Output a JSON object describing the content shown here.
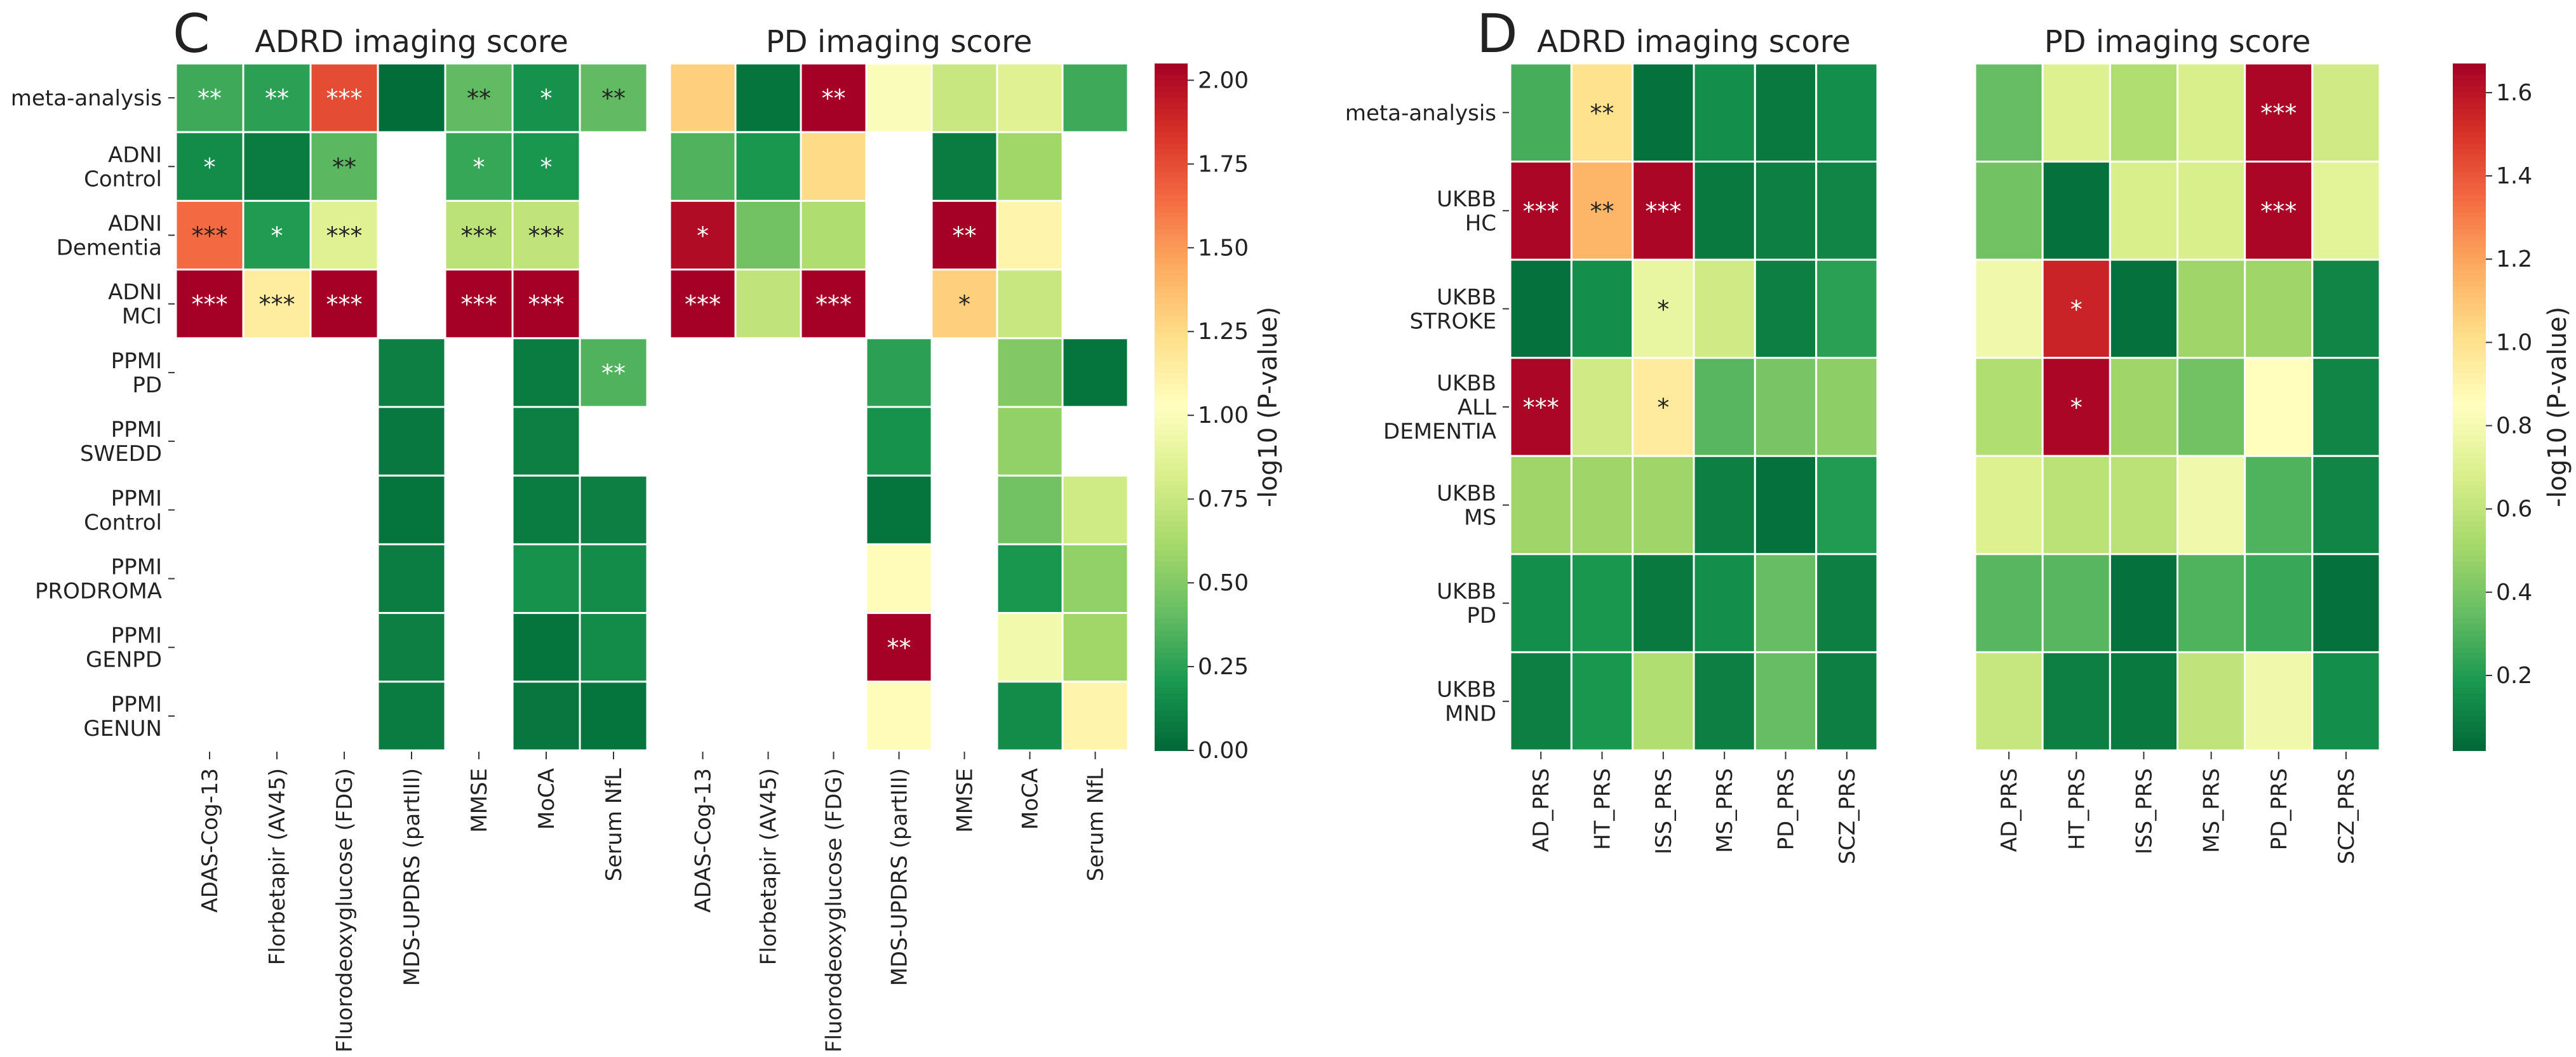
{
  "panel_letters": {
    "C": "C",
    "D": "D"
  },
  "colorbar_label": "-log10 (P-value)",
  "chart_data": [
    {
      "type": "heatmap",
      "panel": "C",
      "title": "ADRD imaging score",
      "rows": [
        "meta-analysis",
        "ADNI\nControl",
        "ADNI\nDementia",
        "ADNI\nMCI",
        "PPMI\nPD",
        "PPMI\nSWEDD",
        "PPMI\nControl",
        "PPMI\nPRODROMA",
        "PPMI\nGENPD",
        "PPMI\nGENUN"
      ],
      "columns": [
        "ADAS-Cog-13",
        "Florbetapir (AV45)",
        "Fluorodeoxyglucose (FDG)",
        "MDS-UPDRS (partIII)",
        "MMSE",
        "MoCA",
        "Serum NfL"
      ],
      "values": [
        [
          0.3,
          0.25,
          1.75,
          0.02,
          0.4,
          0.18,
          0.4
        ],
        [
          0.15,
          0.08,
          0.38,
          null,
          0.28,
          0.2,
          null
        ],
        [
          1.65,
          0.22,
          0.85,
          null,
          0.7,
          0.72,
          null
        ],
        [
          2.05,
          1.15,
          2.05,
          null,
          2.05,
          2.05,
          null
        ],
        [
          null,
          null,
          null,
          0.1,
          null,
          0.08,
          0.35
        ],
        [
          null,
          null,
          null,
          0.07,
          null,
          0.1,
          null
        ],
        [
          null,
          null,
          null,
          0.05,
          null,
          0.08,
          0.1
        ],
        [
          null,
          null,
          null,
          0.09,
          null,
          0.18,
          0.15
        ],
        [
          null,
          null,
          null,
          0.1,
          null,
          0.05,
          0.15
        ],
        [
          null,
          null,
          null,
          0.08,
          null,
          0.06,
          0.05
        ]
      ],
      "annotations": [
        [
          "**",
          "**",
          "***",
          "",
          "**",
          "*",
          "**"
        ],
        [
          "*",
          "",
          "**",
          "",
          "*",
          "*",
          ""
        ],
        [
          "***",
          "*",
          "***",
          "",
          "***",
          "***",
          ""
        ],
        [
          "***",
          "***",
          "***",
          "",
          "***",
          "***",
          ""
        ],
        [
          "",
          "",
          "",
          "",
          "",
          "",
          "**"
        ],
        [
          "",
          "",
          "",
          "",
          "",
          "",
          ""
        ],
        [
          "",
          "",
          "",
          "",
          "",
          "",
          ""
        ],
        [
          "",
          "",
          "",
          "",
          "",
          "",
          ""
        ],
        [
          "",
          "",
          "",
          "",
          "",
          "",
          ""
        ],
        [
          "",
          "",
          "",
          "",
          "",
          "",
          ""
        ]
      ]
    },
    {
      "type": "heatmap",
      "panel": "C",
      "title": "PD imaging score",
      "rows": [
        "meta-analysis",
        "ADNI\nControl",
        "ADNI\nDementia",
        "ADNI\nMCI",
        "PPMI\nPD",
        "PPMI\nSWEDD",
        "PPMI\nControl",
        "PPMI\nPRODROMA",
        "PPMI\nGENPD",
        "PPMI\nGENUN"
      ],
      "columns": [
        "ADAS-Cog-13",
        "Florbetapir (AV45)",
        "Fluorodeoxyglucose (FDG)",
        "MDS-UPDRS (partIII)",
        "MMSE",
        "MoCA",
        "Serum NfL"
      ],
      "values": [
        [
          1.3,
          0.05,
          2.05,
          1.0,
          0.75,
          0.85,
          0.3
        ],
        [
          0.35,
          0.2,
          1.25,
          null,
          0.08,
          0.6,
          null
        ],
        [
          2.0,
          0.45,
          0.65,
          null,
          2.05,
          1.1,
          null
        ],
        [
          2.05,
          0.72,
          2.05,
          null,
          1.3,
          0.75,
          null
        ],
        [
          null,
          null,
          null,
          0.25,
          null,
          0.5,
          0.05
        ],
        [
          null,
          null,
          null,
          0.18,
          null,
          0.55,
          null
        ],
        [
          null,
          null,
          null,
          0.05,
          null,
          0.45,
          0.78
        ],
        [
          null,
          null,
          null,
          1.05,
          null,
          0.2,
          0.55
        ],
        [
          null,
          null,
          null,
          2.05,
          null,
          0.95,
          0.6
        ],
        [
          null,
          null,
          null,
          1.05,
          null,
          0.15,
          1.1
        ]
      ],
      "annotations": [
        [
          "",
          "",
          "**",
          "",
          "",
          "",
          ""
        ],
        [
          "",
          "",
          "",
          "",
          "",
          "",
          ""
        ],
        [
          "*",
          "",
          "",
          "",
          "**",
          "",
          ""
        ],
        [
          "***",
          "",
          "***",
          "",
          "*",
          "",
          ""
        ],
        [
          "",
          "",
          "",
          "",
          "",
          "",
          ""
        ],
        [
          "",
          "",
          "",
          "",
          "",
          "",
          ""
        ],
        [
          "",
          "",
          "",
          "",
          "",
          "",
          ""
        ],
        [
          "",
          "",
          "",
          "",
          "",
          "",
          ""
        ],
        [
          "",
          "",
          "",
          "**",
          "",
          "",
          ""
        ],
        [
          "",
          "",
          "",
          "",
          "",
          "",
          ""
        ]
      ]
    },
    {
      "type": "heatmap",
      "panel": "D",
      "title": "ADRD imaging score",
      "rows": [
        "meta-analysis",
        "UKBB\nHC",
        "UKBB\nSTROKE",
        "UKBB\nALL\nDEMENTIA",
        "UKBB\nMS",
        "UKBB\nPD",
        "UKBB\nMND"
      ],
      "columns": [
        "AD_PRS",
        "HT_PRS",
        "ISS_PRS",
        "MS_PRS",
        "PD_PRS",
        "SCZ_PRS"
      ],
      "values": [
        [
          0.28,
          1.0,
          0.05,
          0.15,
          0.08,
          0.15
        ],
        [
          1.65,
          1.15,
          1.65,
          0.08,
          0.1,
          0.12
        ],
        [
          0.05,
          0.15,
          0.75,
          0.65,
          0.1,
          0.22
        ],
        [
          1.65,
          0.65,
          0.95,
          0.32,
          0.4,
          0.45
        ],
        [
          0.5,
          0.5,
          0.5,
          0.1,
          0.05,
          0.2
        ],
        [
          0.15,
          0.18,
          0.08,
          0.15,
          0.35,
          0.1
        ],
        [
          0.1,
          0.18,
          0.55,
          0.1,
          0.35,
          0.1
        ]
      ],
      "annotations": [
        [
          "",
          "**",
          "",
          "",
          "",
          ""
        ],
        [
          "***",
          "**",
          "***",
          "",
          "",
          ""
        ],
        [
          "",
          "",
          "*",
          "",
          "",
          ""
        ],
        [
          "***",
          "",
          "*",
          "",
          "",
          ""
        ],
        [
          "",
          "",
          "",
          "",
          "",
          ""
        ],
        [
          "",
          "",
          "",
          "",
          "",
          ""
        ],
        [
          "",
          "",
          "",
          "",
          "",
          ""
        ]
      ]
    },
    {
      "type": "heatmap",
      "panel": "D",
      "title": "PD imaging score",
      "rows": [
        "meta-analysis",
        "UKBB\nHC",
        "UKBB\nSTROKE",
        "UKBB\nALL\nDEMENTIA",
        "UKBB\nMS",
        "UKBB\nPD",
        "UKBB\nMND"
      ],
      "columns": [
        "AD_PRS",
        "HT_PRS",
        "ISS_PRS",
        "MS_PRS",
        "PD_PRS",
        "SCZ_PRS"
      ],
      "values": [
        [
          0.35,
          0.7,
          0.55,
          0.68,
          1.65,
          0.65
        ],
        [
          0.38,
          0.05,
          0.68,
          0.68,
          1.65,
          0.72
        ],
        [
          0.78,
          1.55,
          0.05,
          0.5,
          0.5,
          0.12
        ],
        [
          0.55,
          1.65,
          0.5,
          0.38,
          0.85,
          0.12
        ],
        [
          0.7,
          0.58,
          0.58,
          0.78,
          0.3,
          0.12
        ],
        [
          0.32,
          0.32,
          0.05,
          0.3,
          0.25,
          0.05
        ],
        [
          0.62,
          0.1,
          0.08,
          0.6,
          0.78,
          0.15
        ]
      ],
      "annotations": [
        [
          "",
          "",
          "",
          "",
          "***",
          ""
        ],
        [
          "",
          "",
          "",
          "",
          "***",
          ""
        ],
        [
          "",
          "*",
          "",
          "",
          "",
          ""
        ],
        [
          "",
          "*",
          "",
          "",
          "",
          ""
        ],
        [
          "",
          "",
          "",
          "",
          "",
          ""
        ],
        [
          "",
          "",
          "",
          "",
          "",
          ""
        ],
        [
          "",
          "",
          "",
          "",
          "",
          ""
        ]
      ]
    }
  ],
  "colorbars": [
    {
      "panel": "C",
      "vmin": 0.0,
      "vmax": 2.05,
      "ticks": [
        0.0,
        0.25,
        0.5,
        0.75,
        1.0,
        1.25,
        1.5,
        1.75,
        2.0
      ],
      "tick_labels": [
        "0.00",
        "0.25",
        "0.50",
        "0.75",
        "1.00",
        "1.25",
        "1.50",
        "1.75",
        "2.00"
      ]
    },
    {
      "panel": "D",
      "vmin": 0.02,
      "vmax": 1.67,
      "ticks": [
        0.2,
        0.4,
        0.6,
        0.8,
        1.0,
        1.2,
        1.4,
        1.6
      ],
      "tick_labels": [
        "0.2",
        "0.4",
        "0.6",
        "0.8",
        "1.0",
        "1.2",
        "1.4",
        "1.6"
      ]
    }
  ],
  "colormap": [
    "#006837",
    "#1a9850",
    "#66bd63",
    "#a6d96a",
    "#d9ef8b",
    "#ffffbf",
    "#fee08b",
    "#fdae61",
    "#f46d43",
    "#d73027",
    "#a50026"
  ]
}
